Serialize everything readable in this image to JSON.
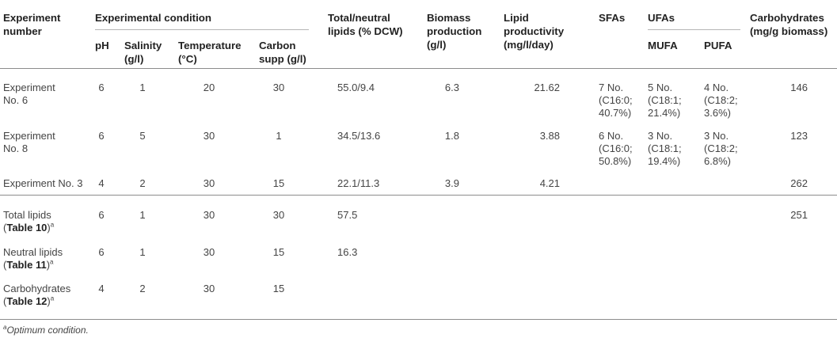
{
  "headers": {
    "experiment_number": [
      "Experiment",
      "number"
    ],
    "experimental_condition": "Experimental condition",
    "ph": "pH",
    "salinity": [
      "Salinity",
      "(g/l)"
    ],
    "temperature": [
      "Temperature",
      "(°C)"
    ],
    "carbon": [
      "Carbon",
      "supp (g/l)"
    ],
    "total_neutral": [
      "Total/neutral",
      "lipids (% DCW)"
    ],
    "biomass": [
      "Biomass",
      "production",
      "(g/l)"
    ],
    "lipid_prod": [
      "Lipid",
      "productivity",
      "(mg/l/day)"
    ],
    "sfas": "SFAs",
    "ufas": "UFAs",
    "mufa": "MUFA",
    "pufa": "PUFA",
    "carbohydrates": [
      "Carbohydrates",
      "(mg/g biomass)"
    ]
  },
  "rows": [
    {
      "name": [
        "Experiment",
        "No. 6"
      ],
      "ph": "6",
      "salinity": "1",
      "temperature": "20",
      "carbon": "30",
      "lipids": "55.0/9.4",
      "biomass": "6.3",
      "productivity": "21.62",
      "sfa": [
        "7 No.",
        "(C16:0;",
        "40.7%)"
      ],
      "mufa": [
        "5 No.",
        "(C18:1;",
        "21.4%)"
      ],
      "pufa": [
        "4 No.",
        "(C18:2;",
        "3.6%)"
      ],
      "carbohydrates": "146"
    },
    {
      "name": [
        "Experiment",
        "No. 8"
      ],
      "ph": "6",
      "salinity": "5",
      "temperature": "30",
      "carbon": "1",
      "lipids": "34.5/13.6",
      "biomass": "1.8",
      "productivity": "3.88",
      "sfa": [
        "6 No.",
        "(C16:0;",
        "50.8%)"
      ],
      "mufa": [
        "3 No.",
        "(C18:1;",
        "19.4%)"
      ],
      "pufa": [
        "3 No.",
        "(C18:2;",
        "6.8%)"
      ],
      "carbohydrates": "123"
    },
    {
      "name": [
        "Experiment No. 3"
      ],
      "ph": "4",
      "salinity": "2",
      "temperature": "30",
      "carbon": "15",
      "lipids": "22.1/11.3",
      "biomass": "3.9",
      "productivity": "4.21",
      "carbohydrates": "262"
    },
    {
      "name": [
        "Total lipids",
        "Table 10",
        "a"
      ],
      "ph": "6",
      "salinity": "1",
      "temperature": "30",
      "carbon": "30",
      "lipids": "57.5",
      "carbohydrates": "251"
    },
    {
      "name": [
        "Neutral lipids",
        "Table 11",
        "a"
      ],
      "ph": "6",
      "salinity": "1",
      "temperature": "30",
      "carbon": "15",
      "lipids": "16.3"
    },
    {
      "name": [
        "Carbohydrates",
        "Table 12",
        "a"
      ],
      "ph": "4",
      "salinity": "2",
      "temperature": "30",
      "carbon": "15"
    }
  ],
  "footnote": {
    "mark": "a",
    "text": "Optimum condition."
  }
}
